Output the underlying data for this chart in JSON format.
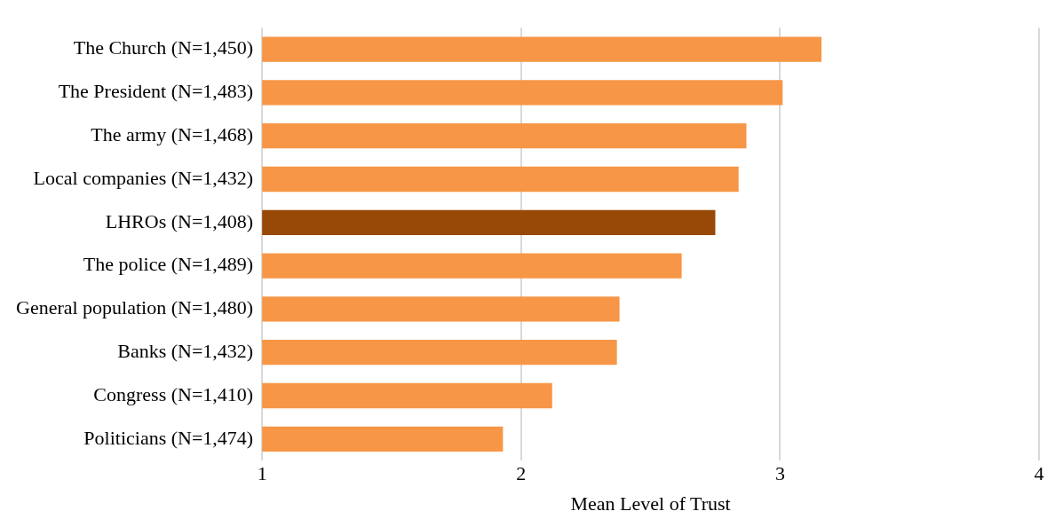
{
  "chart_data": {
    "type": "bar",
    "orientation": "horizontal",
    "xlabel": "Mean Level of Trust",
    "categories": [
      "The Church (N=1,450)",
      "The President (N=1,483)",
      "The army (N=1,468)",
      "Local companies (N=1,432)",
      "LHROs (N=1,408)",
      "The police (N=1,489)",
      "General population (N=1,480)",
      "Banks (N=1,432)",
      "Congress (N=1,410)",
      "Politicians (N=1,474)"
    ],
    "values": [
      3.16,
      3.01,
      2.87,
      2.84,
      2.75,
      2.62,
      2.38,
      2.37,
      2.12,
      1.93
    ],
    "colors": [
      "#f79646",
      "#f79646",
      "#f79646",
      "#f79646",
      "#984807",
      "#f79646",
      "#f79646",
      "#f79646",
      "#f79646",
      "#f79646"
    ],
    "xlim": [
      1,
      4
    ],
    "xticks": [
      1,
      2,
      3,
      4
    ],
    "grid": "x",
    "legend": false
  }
}
